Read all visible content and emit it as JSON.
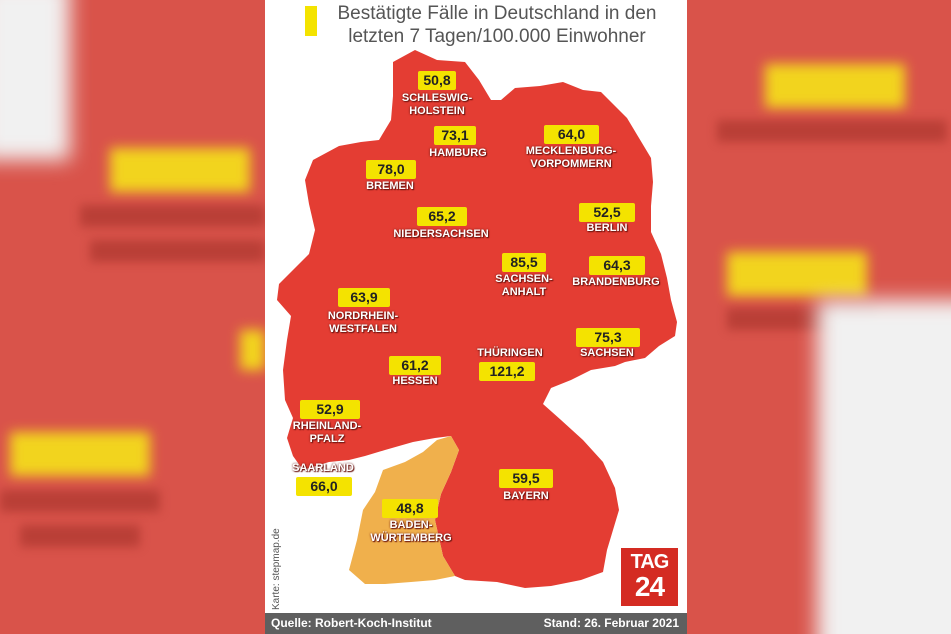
{
  "title": "Bestätigte Fälle in Deutschland in den letzten 7 Tagen/100.000 Einwohner",
  "states": {
    "sh": {
      "value": "50,8",
      "label": "SCHLESWIG-\nHOLSTEIN"
    },
    "hh": {
      "value": "73,1",
      "label": "HAMBURG"
    },
    "mv": {
      "value": "64,0",
      "label": "MECKLENBURG-\nVORPOMMERN"
    },
    "hb": {
      "value": "78,0",
      "label": "BREMEN"
    },
    "ni": {
      "value": "65,2",
      "label": "NIEDERSACHSEN"
    },
    "be": {
      "value": "52,5",
      "label": "BERLIN"
    },
    "st": {
      "value": "85,5",
      "label": "SACHSEN-\nANHALT"
    },
    "bb": {
      "value": "64,3",
      "label": "BRANDENBURG"
    },
    "nw": {
      "value": "63,9",
      "label": "NORDRHEIN-\nWESTFALEN"
    },
    "sn": {
      "value": "75,3",
      "label": "SACHSEN"
    },
    "he": {
      "value": "61,2",
      "label": "HESSEN"
    },
    "th": {
      "value": "121,2",
      "label": "THÜRINGEN"
    },
    "rp": {
      "value": "52,9",
      "label": "RHEINLAND-\nPFALZ"
    },
    "sl": {
      "value": "66,0",
      "label": "SAARLAND"
    },
    "by": {
      "value": "59,5",
      "label": "BAYERN"
    },
    "bw": {
      "value": "48,8",
      "label": "BADEN-\nWÜRTEMBERG"
    }
  },
  "colors": {
    "high": "#e43d33",
    "low": "#f0b04c",
    "highlight": "#f4e300"
  },
  "credit": "Karte: stepmap.de",
  "source": "Quelle: Robert-Koch-Institut",
  "date": "Stand: 26. Februar 2021",
  "logo": {
    "line1": "TAG",
    "line2": "24"
  }
}
